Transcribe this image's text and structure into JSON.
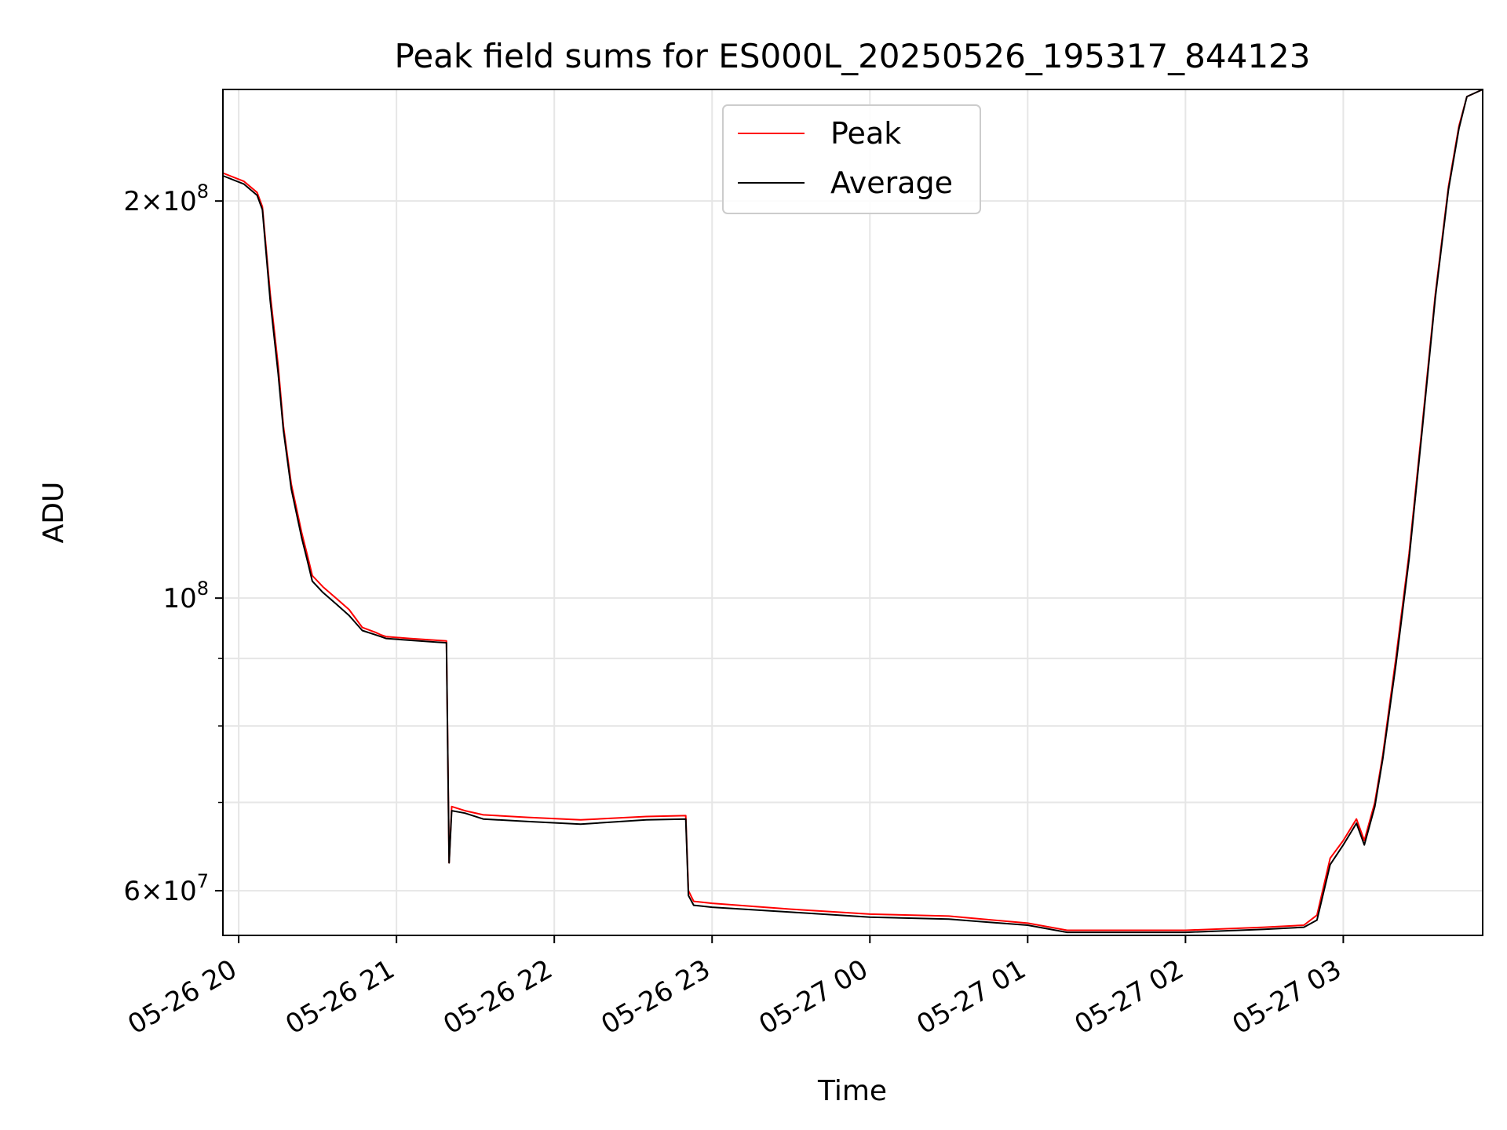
{
  "chart_data": {
    "type": "line",
    "title": "Peak field sums for ES000L_20250526_195317_844123",
    "xlabel": "Time",
    "ylabel": "ADU",
    "y_scale": "log",
    "ylim": [
      55500000,
      243000000
    ],
    "xlim": [
      "2025-05-26 19:54",
      "2025-05-27 03:53"
    ],
    "grid": true,
    "legend_position": "top-center",
    "x_ticks": [
      {
        "t": "2025-05-26 20:00",
        "label": "05-26 20"
      },
      {
        "t": "2025-05-26 21:00",
        "label": "05-26 21"
      },
      {
        "t": "2025-05-26 22:00",
        "label": "05-26 22"
      },
      {
        "t": "2025-05-26 23:00",
        "label": "05-26 23"
      },
      {
        "t": "2025-05-27 00:00",
        "label": "05-27 00"
      },
      {
        "t": "2025-05-27 01:00",
        "label": "05-27 01"
      },
      {
        "t": "2025-05-27 02:00",
        "label": "05-27 02"
      },
      {
        "t": "2025-05-27 03:00",
        "label": "05-27 03"
      }
    ],
    "y_ticks": [
      {
        "value": 200000000,
        "mant": "2×10",
        "exp": "8"
      },
      {
        "value": 100000000,
        "mant": "10",
        "exp": "8"
      },
      {
        "value": 60000000,
        "mant": "6×10",
        "exp": "7"
      }
    ],
    "y_minor_ticks": [
      70000000,
      80000000,
      90000000
    ],
    "series": [
      {
        "name": "Peak",
        "color": "#ff0000",
        "x": [
          "2025-05-26 19:54",
          "2025-05-26 20:02",
          "2025-05-26 20:07",
          "2025-05-26 20:09",
          "2025-05-26 20:12",
          "2025-05-26 20:15",
          "2025-05-26 20:17",
          "2025-05-26 20:20",
          "2025-05-26 20:24",
          "2025-05-26 20:26",
          "2025-05-26 20:28",
          "2025-05-26 20:32",
          "2025-05-26 20:37",
          "2025-05-26 20:42",
          "2025-05-26 20:47",
          "2025-05-26 20:52",
          "2025-05-26 20:54",
          "2025-05-26 20:56",
          "2025-05-26 21:05",
          "2025-05-26 21:15",
          "2025-05-26 21:19",
          "2025-05-26 21:20",
          "2025-05-26 21:21",
          "2025-05-26 21:26",
          "2025-05-26 21:33",
          "2025-05-26 21:50",
          "2025-05-26 22:10",
          "2025-05-26 22:35",
          "2025-05-26 22:50",
          "2025-05-26 22:51",
          "2025-05-26 22:53",
          "2025-05-26 23:00",
          "2025-05-26 23:30",
          "2025-05-27 00:00",
          "2025-05-27 00:30",
          "2025-05-27 01:00",
          "2025-05-27 01:15",
          "2025-05-27 01:30",
          "2025-05-27 02:00",
          "2025-05-27 02:30",
          "2025-05-27 02:45",
          "2025-05-27 02:50",
          "2025-05-27 02:55",
          "2025-05-27 03:00",
          "2025-05-27 03:05",
          "2025-05-27 03:08",
          "2025-05-27 03:12",
          "2025-05-27 03:15",
          "2025-05-27 03:20",
          "2025-05-27 03:25",
          "2025-05-27 03:30",
          "2025-05-27 03:35",
          "2025-05-27 03:40",
          "2025-05-27 03:44",
          "2025-05-27 03:47",
          "2025-05-27 03:53"
        ],
        "values": [
          210000000,
          207000000,
          203000000,
          198000000,
          170000000,
          150000000,
          135000000,
          122000000,
          112000000,
          108000000,
          104000000,
          102000000,
          100000000,
          98000000,
          95000000,
          94200000,
          93800000,
          93500000,
          93200000,
          92900000,
          92800000,
          63000000,
          69500000,
          69000000,
          68500000,
          68200000,
          67900000,
          68300000,
          68400000,
          60000000,
          58900000,
          58700000,
          58100000,
          57600000,
          57400000,
          56700000,
          56000000,
          56000000,
          56000000,
          56300000,
          56500000,
          57500000,
          63500000,
          65500000,
          68000000,
          65500000,
          70000000,
          76000000,
          90000000,
          108000000,
          135000000,
          170000000,
          205000000,
          228000000,
          240000000,
          243000000
        ]
      },
      {
        "name": "Average",
        "color": "#000000",
        "x": [
          "2025-05-26 19:54",
          "2025-05-26 20:02",
          "2025-05-26 20:07",
          "2025-05-26 20:09",
          "2025-05-26 20:12",
          "2025-05-26 20:15",
          "2025-05-26 20:17",
          "2025-05-26 20:20",
          "2025-05-26 20:24",
          "2025-05-26 20:26",
          "2025-05-26 20:28",
          "2025-05-26 20:32",
          "2025-05-26 20:37",
          "2025-05-26 20:42",
          "2025-05-26 20:47",
          "2025-05-26 20:52",
          "2025-05-26 20:54",
          "2025-05-26 20:56",
          "2025-05-26 21:05",
          "2025-05-26 21:15",
          "2025-05-26 21:19",
          "2025-05-26 21:20",
          "2025-05-26 21:21",
          "2025-05-26 21:26",
          "2025-05-26 21:33",
          "2025-05-26 21:50",
          "2025-05-26 22:10",
          "2025-05-26 22:35",
          "2025-05-26 22:50",
          "2025-05-26 22:51",
          "2025-05-26 22:53",
          "2025-05-26 23:00",
          "2025-05-26 23:30",
          "2025-05-27 00:00",
          "2025-05-27 00:30",
          "2025-05-27 01:00",
          "2025-05-27 01:15",
          "2025-05-27 01:30",
          "2025-05-27 02:00",
          "2025-05-27 02:30",
          "2025-05-27 02:45",
          "2025-05-27 02:50",
          "2025-05-27 02:55",
          "2025-05-27 03:00",
          "2025-05-27 03:05",
          "2025-05-27 03:08",
          "2025-05-27 03:12",
          "2025-05-27 03:15",
          "2025-05-27 03:20",
          "2025-05-27 03:25",
          "2025-05-27 03:30",
          "2025-05-27 03:35",
          "2025-05-27 03:40",
          "2025-05-27 03:44",
          "2025-05-27 03:47",
          "2025-05-27 03:53"
        ],
        "values": [
          209000000,
          206000000,
          202000000,
          197000000,
          168000000,
          148000000,
          134000000,
          121000000,
          111000000,
          107000000,
          103000000,
          101000000,
          99000000,
          97000000,
          94500000,
          93800000,
          93500000,
          93200000,
          92900000,
          92600000,
          92500000,
          63000000,
          69000000,
          68700000,
          68000000,
          67700000,
          67400000,
          67900000,
          68000000,
          59500000,
          58500000,
          58300000,
          57800000,
          57300000,
          57100000,
          56500000,
          55800000,
          55800000,
          55800000,
          56100000,
          56300000,
          57000000,
          62800000,
          65000000,
          67500000,
          65000000,
          69500000,
          75500000,
          89000000,
          107000000,
          134000000,
          169000000,
          204000000,
          227000000,
          240000000,
          243000000
        ]
      }
    ]
  }
}
